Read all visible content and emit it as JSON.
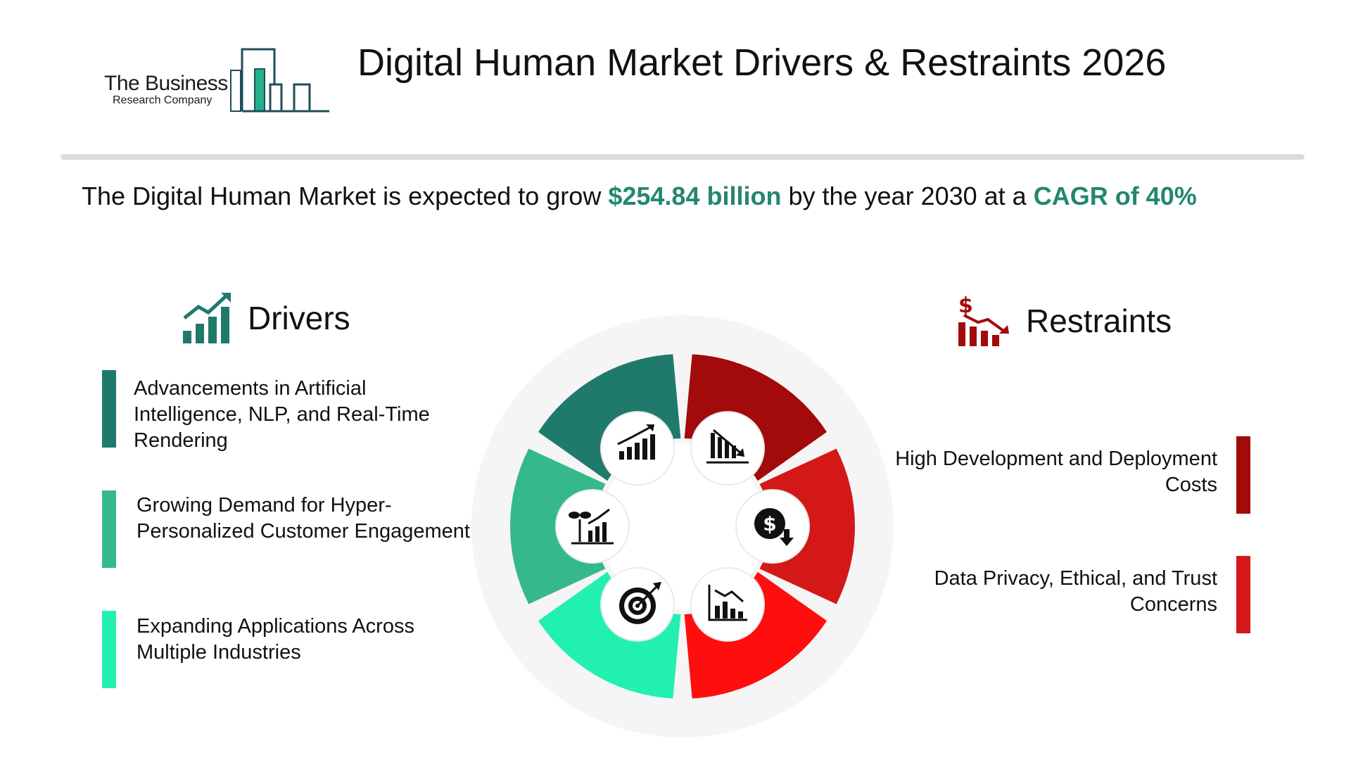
{
  "logo": {
    "line1": "The Business",
    "line2": "Research Company"
  },
  "title": "Digital Human Market Drivers & Restraints 2026",
  "headline": {
    "prefix": "The Digital Human Market is expected to grow ",
    "value": "$254.84 billion",
    "middle": " by the year 2030 at a ",
    "cagr": "CAGR of 40%"
  },
  "drivers": {
    "title": "Drivers",
    "items": [
      {
        "text": "Advancements in Artificial Intelligence, NLP, and Real-Time Rendering",
        "color": "#1f7a6c"
      },
      {
        "text": "Growing Demand for Hyper-Personalized Customer Engagement",
        "color": "#35b98a"
      },
      {
        "text": "Expanding Applications Across Multiple Industries",
        "color": "#22f0b0"
      }
    ]
  },
  "restraints": {
    "title": "Restraints",
    "items": [
      {
        "text": "High Development and Deployment Costs",
        "color": "#a30a0a"
      },
      {
        "text": "Data Privacy, Ethical, and Trust Concerns",
        "color": "#d41818"
      }
    ]
  },
  "wheel_icons": [
    "growth-chart-icon",
    "declining-bars-icon",
    "dollar-down-icon",
    "declining-chart-icon",
    "target-icon",
    "plant-growth-icon"
  ],
  "colors": {
    "accent": "#23876f",
    "driver_dark": "#1f7a6c",
    "driver_mid": "#35b98a",
    "driver_light": "#22f0b0",
    "restraint_dark": "#a30a0a",
    "restraint_mid": "#d41818",
    "restraint_light": "#ff0e0e"
  }
}
